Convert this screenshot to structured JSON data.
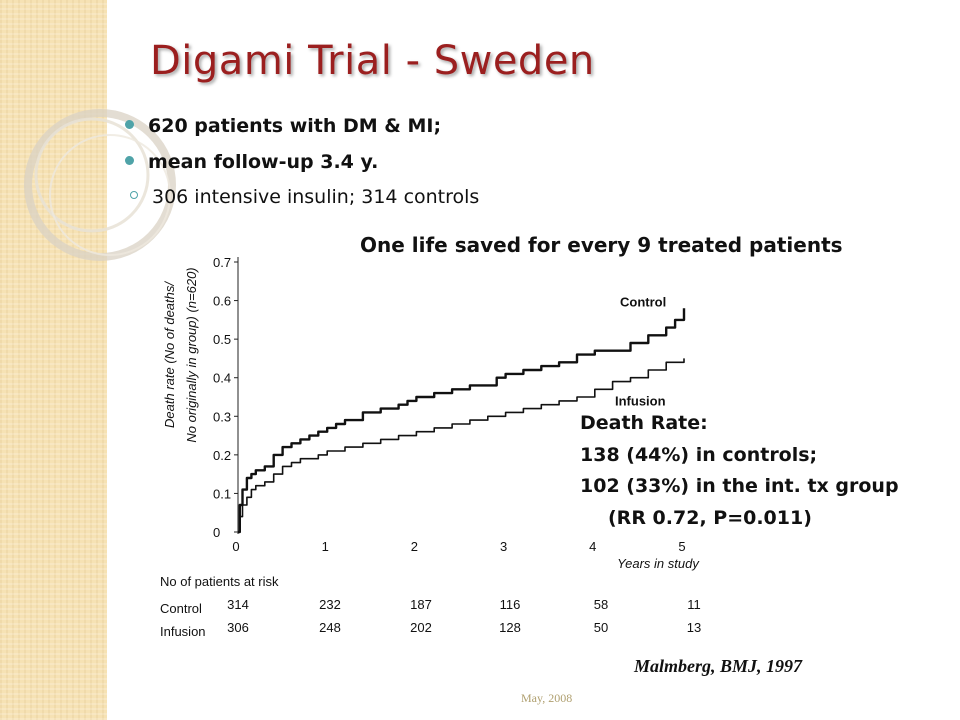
{
  "slide": {
    "title": "Digami Trial - Sweden",
    "bullets": [
      {
        "text": "620 patients with DM & MI;",
        "level": 1
      },
      {
        "text": "mean follow-up 3.4 y.",
        "level": 1
      },
      {
        "text": "306 intensive insulin; 314 controls",
        "level": 2
      }
    ],
    "headline": "One life saved for every 9 treated patients",
    "death_rate": {
      "heading": "Death Rate:",
      "controls": "138 (44%) in controls;",
      "intensive": "102 (33%) in the int. tx group",
      "rr": "(RR 0.72, P=0.011)"
    },
    "citation": "Malmberg, BMJ, 1997",
    "footer_date": "May, 2008",
    "colors": {
      "title": "#9b1f1f",
      "bullet_marker": "#4fa3a8",
      "left_band": "#f6e2b4"
    }
  },
  "chart_data": {
    "type": "line",
    "ylabel": "Death rate (No of deaths/ No originally in group) (n=620)",
    "xlabel": "Years in study",
    "ylim": [
      0,
      0.7
    ],
    "xlim": [
      0,
      5
    ],
    "yticks": [
      "0",
      "0.1",
      "0.2",
      "0.3",
      "0.4",
      "0.5",
      "0.6",
      "0.7"
    ],
    "xticks": [
      "0",
      "1",
      "2",
      "3",
      "4",
      "5"
    ],
    "series": [
      {
        "name": "Control",
        "x": [
          0,
          0.02,
          0.05,
          0.1,
          0.15,
          0.2,
          0.3,
          0.4,
          0.5,
          0.6,
          0.7,
          0.8,
          0.9,
          1.0,
          1.1,
          1.2,
          1.4,
          1.5,
          1.6,
          1.8,
          1.9,
          2.0,
          2.2,
          2.4,
          2.6,
          2.8,
          2.9,
          3.0,
          3.2,
          3.4,
          3.6,
          3.8,
          4.0,
          4.2,
          4.4,
          4.6,
          4.8,
          4.9,
          5.0
        ],
        "values": [
          0,
          0.07,
          0.11,
          0.14,
          0.15,
          0.16,
          0.17,
          0.2,
          0.22,
          0.23,
          0.24,
          0.25,
          0.26,
          0.27,
          0.28,
          0.29,
          0.31,
          0.31,
          0.32,
          0.33,
          0.34,
          0.35,
          0.36,
          0.37,
          0.38,
          0.38,
          0.4,
          0.41,
          0.42,
          0.43,
          0.44,
          0.46,
          0.47,
          0.47,
          0.49,
          0.51,
          0.53,
          0.55,
          0.58
        ]
      },
      {
        "name": "Infusion",
        "x": [
          0,
          0.02,
          0.05,
          0.1,
          0.15,
          0.2,
          0.3,
          0.4,
          0.5,
          0.6,
          0.7,
          0.8,
          0.9,
          1.0,
          1.2,
          1.4,
          1.6,
          1.8,
          2.0,
          2.2,
          2.4,
          2.6,
          2.8,
          3.0,
          3.2,
          3.4,
          3.6,
          3.8,
          4.0,
          4.2,
          4.4,
          4.6,
          4.8,
          5.0
        ],
        "values": [
          0,
          0.04,
          0.07,
          0.09,
          0.11,
          0.12,
          0.13,
          0.15,
          0.17,
          0.18,
          0.19,
          0.19,
          0.2,
          0.21,
          0.22,
          0.23,
          0.24,
          0.25,
          0.26,
          0.27,
          0.28,
          0.29,
          0.3,
          0.31,
          0.32,
          0.33,
          0.34,
          0.35,
          0.37,
          0.39,
          0.4,
          0.42,
          0.44,
          0.45
        ]
      }
    ],
    "at_risk": {
      "title": "No of patients at risk",
      "rows": [
        {
          "label": "Control",
          "values": [
            "314",
            "232",
            "187",
            "116",
            "58",
            "11"
          ]
        },
        {
          "label": "Infusion",
          "values": [
            "306",
            "248",
            "202",
            "128",
            "50",
            "13"
          ]
        }
      ]
    }
  }
}
